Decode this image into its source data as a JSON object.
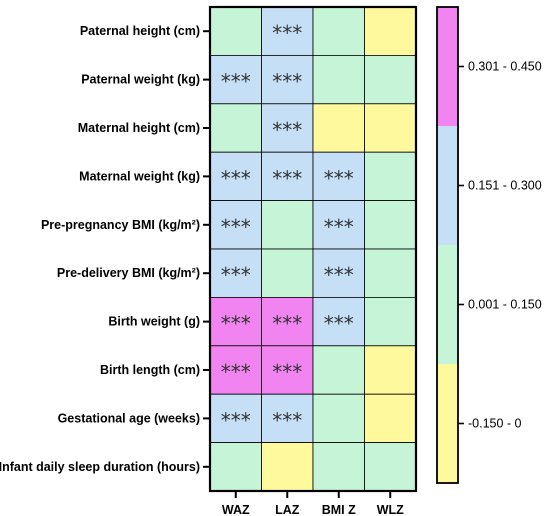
{
  "chart_data": {
    "type": "heatmap",
    "rows": [
      "Paternal height (cm)",
      "Paternal weight (kg)",
      "Maternal height (cm)",
      "Maternal weight (kg)",
      "Pre-pregnancy BMI (kg/m²)",
      "Pre-delivery BMI (kg/m²)",
      "Birth weight (g)",
      "Birth length (cm)",
      "Gestational age (weeks)",
      "Infant daily sleep duration (hours)"
    ],
    "columns": [
      "WAZ",
      "LAZ",
      "BMI Z",
      "WLZ"
    ],
    "category_index": [
      [
        1,
        2,
        1,
        0
      ],
      [
        2,
        2,
        1,
        1
      ],
      [
        1,
        2,
        0,
        0
      ],
      [
        2,
        2,
        2,
        1
      ],
      [
        2,
        1,
        2,
        1
      ],
      [
        2,
        1,
        2,
        1
      ],
      [
        3,
        3,
        2,
        1
      ],
      [
        3,
        3,
        1,
        0
      ],
      [
        2,
        2,
        1,
        0
      ],
      [
        1,
        0,
        1,
        1
      ]
    ],
    "significance": [
      [
        "",
        "***",
        "",
        ""
      ],
      [
        "***",
        "***",
        "",
        ""
      ],
      [
        "",
        "***",
        "",
        ""
      ],
      [
        "***",
        "***",
        "***",
        ""
      ],
      [
        "***",
        "",
        "***",
        ""
      ],
      [
        "***",
        "",
        "***",
        ""
      ],
      [
        "***",
        "***",
        "***",
        ""
      ],
      [
        "***",
        "***",
        "",
        ""
      ],
      [
        "***",
        "***",
        "",
        ""
      ],
      [
        "",
        "",
        "",
        ""
      ]
    ],
    "legend": {
      "placement": "right",
      "categories": [
        {
          "label": "-0.150 - 0",
          "range": [
            -0.15,
            0
          ],
          "color": "#fdf99c"
        },
        {
          "label": "0.001 - 0.150",
          "range": [
            0.001,
            0.15
          ],
          "color": "#c6f4d7"
        },
        {
          "label": "0.151 - 0.300",
          "range": [
            0.151,
            0.3
          ],
          "color": "#c5dff7"
        },
        {
          "label": "0.301 - 0.450",
          "range": [
            0.301,
            0.45
          ],
          "color": "#f184f0"
        }
      ]
    }
  }
}
